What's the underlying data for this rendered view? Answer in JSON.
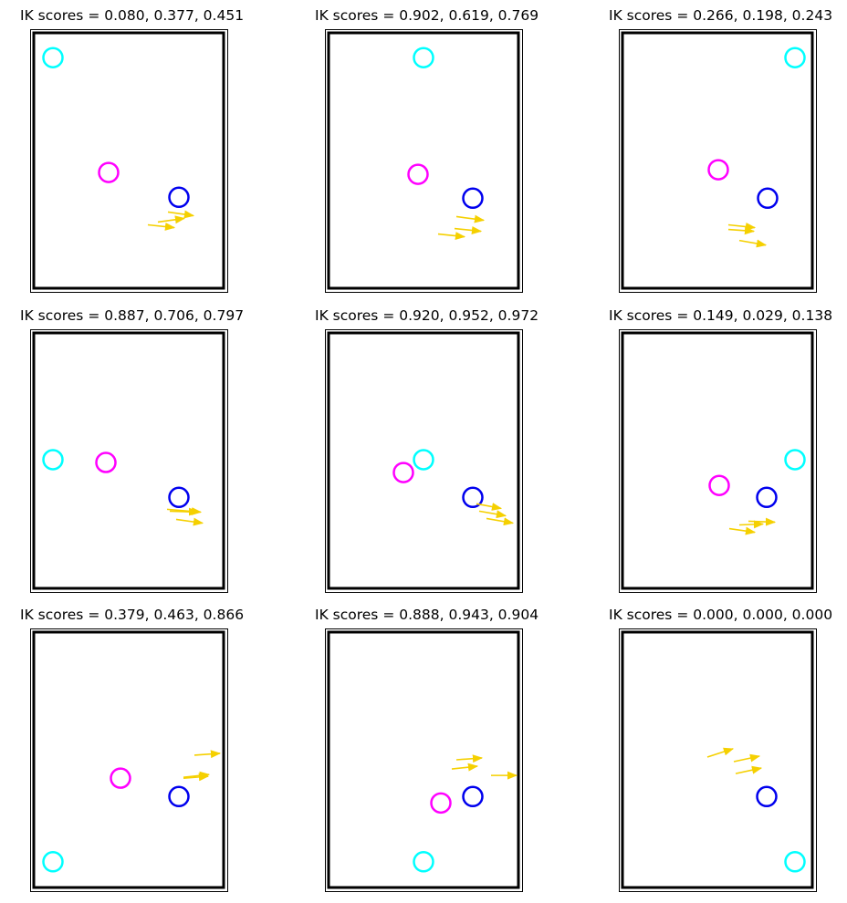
{
  "chart_data": [
    {
      "type": "scatter",
      "title": "IK scores = 0.080, 0.377, 0.451",
      "colors": {
        "cyan": "#00ffff",
        "magenta": "#ff00ff",
        "blue": "#0000ee",
        "arrow": "#f5d000"
      },
      "xlim": [
        0,
        210
      ],
      "ylim": [
        0,
        280
      ],
      "cyan": [
        [
          22,
          28
        ]
      ],
      "magenta": [
        [
          83,
          153
        ]
      ],
      "blue": [
        [
          160,
          180
        ]
      ],
      "arrows": [
        [
          148,
          196,
          176,
          200
        ],
        [
          137,
          207,
          166,
          203
        ],
        [
          126,
          210,
          155,
          213
        ]
      ]
    },
    {
      "type": "scatter",
      "title": "IK scores = 0.902, 0.619, 0.769",
      "colors": {
        "cyan": "#00ffff",
        "magenta": "#ff00ff",
        "blue": "#0000ee",
        "arrow": "#f5d000"
      },
      "xlim": [
        0,
        210
      ],
      "ylim": [
        0,
        280
      ],
      "cyan": [
        [
          105,
          28
        ]
      ],
      "magenta": [
        [
          99,
          155
        ]
      ],
      "blue": [
        [
          159,
          181
        ]
      ],
      "arrows": [
        [
          141,
          201,
          171,
          205
        ],
        [
          139,
          214,
          168,
          217
        ],
        [
          121,
          220,
          150,
          223
        ]
      ]
    },
    {
      "type": "scatter",
      "title": "IK scores = 0.266, 0.198, 0.243",
      "colors": {
        "cyan": "#00ffff",
        "magenta": "#ff00ff",
        "blue": "#0000ee",
        "arrow": "#f5d000"
      },
      "xlim": [
        0,
        210
      ],
      "ylim": [
        0,
        280
      ],
      "cyan": [
        [
          190,
          28
        ]
      ],
      "magenta": [
        [
          106,
          150
        ]
      ],
      "blue": [
        [
          160,
          181
        ]
      ],
      "arrows": [
        [
          117,
          210,
          146,
          213
        ],
        [
          117,
          215,
          145,
          217
        ],
        [
          129,
          227,
          158,
          232
        ]
      ]
    },
    {
      "type": "scatter",
      "title": "IK scores = 0.887, 0.706, 0.797",
      "colors": {
        "cyan": "#00ffff",
        "magenta": "#ff00ff",
        "blue": "#0000ee",
        "arrow": "#f5d000"
      },
      "xlim": [
        0,
        210
      ],
      "ylim": [
        0,
        280
      ],
      "cyan": [
        [
          22,
          139
        ]
      ],
      "magenta": [
        [
          80,
          142
        ]
      ],
      "blue": [
        [
          160,
          180
        ]
      ],
      "arrows": [
        [
          147,
          193,
          184,
          196
        ],
        [
          150,
          195,
          181,
          196
        ],
        [
          157,
          204,
          186,
          208
        ]
      ]
    },
    {
      "type": "scatter",
      "title": "IK scores = 0.920, 0.952, 0.972",
      "colors": {
        "cyan": "#00ffff",
        "magenta": "#ff00ff",
        "blue": "#0000ee",
        "arrow": "#f5d000"
      },
      "xlim": [
        0,
        210
      ],
      "ylim": [
        0,
        280
      ],
      "cyan": [
        [
          105,
          139
        ]
      ],
      "magenta": [
        [
          83,
          153
        ]
      ],
      "blue": [
        [
          159,
          180
        ]
      ],
      "arrows": [
        [
          163,
          187,
          190,
          192
        ],
        [
          166,
          195,
          195,
          200
        ],
        [
          174,
          203,
          203,
          208
        ]
      ]
    },
    {
      "type": "scatter",
      "title": "IK scores = 0.149, 0.029, 0.138",
      "colors": {
        "cyan": "#00ffff",
        "magenta": "#ff00ff",
        "blue": "#0000ee",
        "arrow": "#f5d000"
      },
      "xlim": [
        0,
        210
      ],
      "ylim": [
        0,
        280
      ],
      "cyan": [
        [
          190,
          139
        ]
      ],
      "magenta": [
        [
          107,
          167
        ]
      ],
      "blue": [
        [
          159,
          180
        ]
      ],
      "arrows": [
        [
          139,
          206,
          168,
          207
        ],
        [
          129,
          210,
          155,
          209
        ],
        [
          118,
          214,
          146,
          218
        ]
      ]
    },
    {
      "type": "scatter",
      "title": "IK scores = 0.379, 0.463, 0.866",
      "colors": {
        "cyan": "#00ffff",
        "magenta": "#ff00ff",
        "blue": "#0000ee",
        "arrow": "#f5d000"
      },
      "xlim": [
        0,
        210
      ],
      "ylim": [
        0,
        280
      ],
      "cyan": [
        [
          22,
          251
        ]
      ],
      "magenta": [
        [
          96,
          160
        ]
      ],
      "blue": [
        [
          160,
          180
        ]
      ],
      "arrows": [
        [
          177,
          135,
          205,
          133
        ],
        [
          165,
          159,
          193,
          156
        ],
        [
          165,
          160,
          192,
          158
        ]
      ]
    },
    {
      "type": "scatter",
      "title": "IK scores = 0.888, 0.943, 0.904",
      "colors": {
        "cyan": "#00ffff",
        "magenta": "#ff00ff",
        "blue": "#0000ee",
        "arrow": "#f5d000"
      },
      "xlim": [
        0,
        210
      ],
      "ylim": [
        0,
        280
      ],
      "cyan": [
        [
          105,
          251
        ]
      ],
      "magenta": [
        [
          124,
          187
        ]
      ],
      "blue": [
        [
          159,
          180
        ]
      ],
      "arrows": [
        [
          141,
          140,
          169,
          138
        ],
        [
          136,
          150,
          164,
          147
        ],
        [
          179,
          157,
          207,
          157
        ]
      ]
    },
    {
      "type": "scatter",
      "title": "IK scores = 0.000, 0.000, 0.000",
      "colors": {
        "cyan": "#00ffff",
        "magenta": "#ff00ff",
        "blue": "#0000ee",
        "arrow": "#f5d000"
      },
      "xlim": [
        0,
        210
      ],
      "ylim": [
        0,
        280
      ],
      "cyan": [
        [
          190,
          251
        ]
      ],
      "magenta": [],
      "blue": [
        [
          159,
          180
        ]
      ],
      "arrows": [
        [
          94,
          137,
          122,
          128
        ],
        [
          123,
          142,
          151,
          136
        ],
        [
          125,
          155,
          153,
          149
        ]
      ]
    }
  ]
}
